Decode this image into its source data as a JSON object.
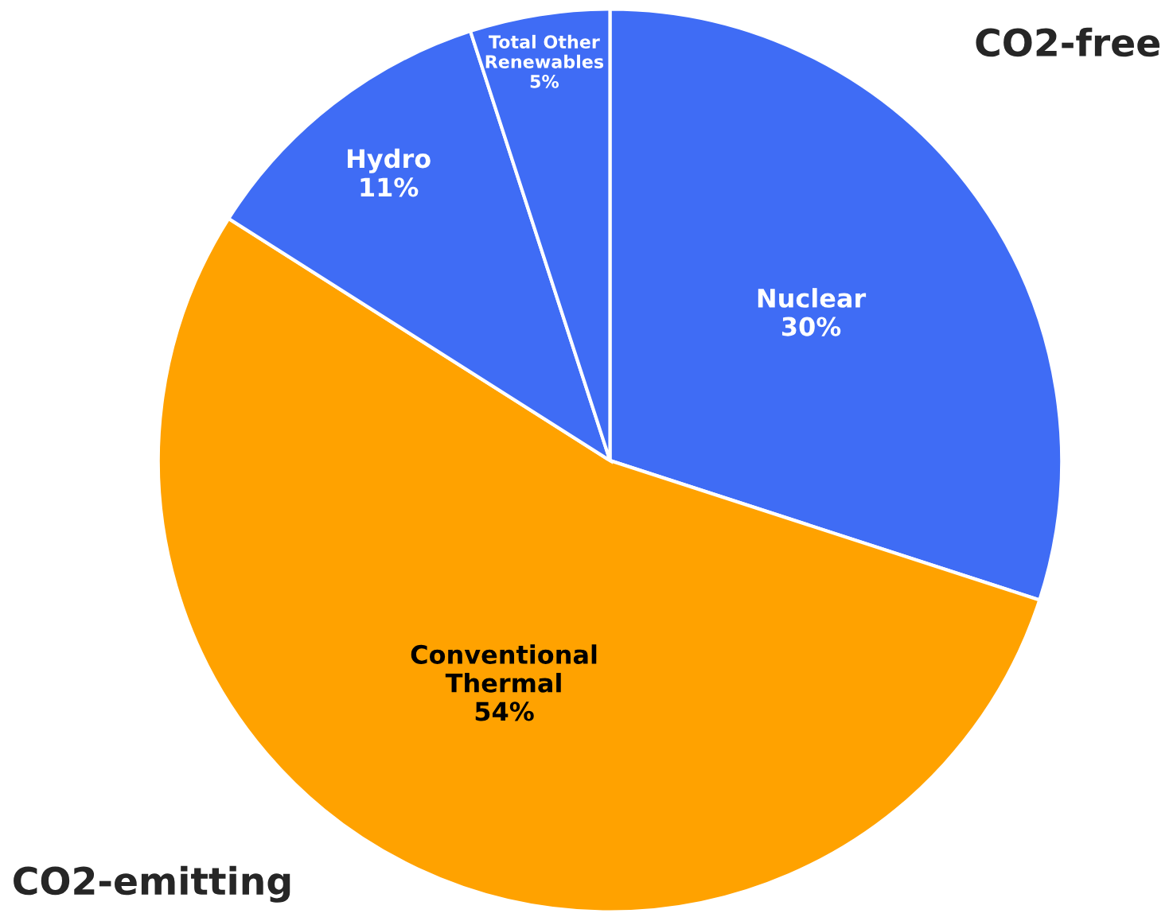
{
  "chart_data": {
    "type": "pie",
    "categories": [
      "Nuclear",
      "Conventional Thermal",
      "Hydro",
      "Total Other Renewables"
    ],
    "values": [
      30,
      54,
      11,
      5
    ],
    "colors": [
      "#3f6cf5",
      "#ffa200",
      "#3f6cf5",
      "#3f6cf5"
    ],
    "value_labels": [
      "30%",
      "54%",
      "11%",
      "5%"
    ],
    "annotations": [
      "CO2-free",
      "CO2-emitting"
    ]
  }
}
